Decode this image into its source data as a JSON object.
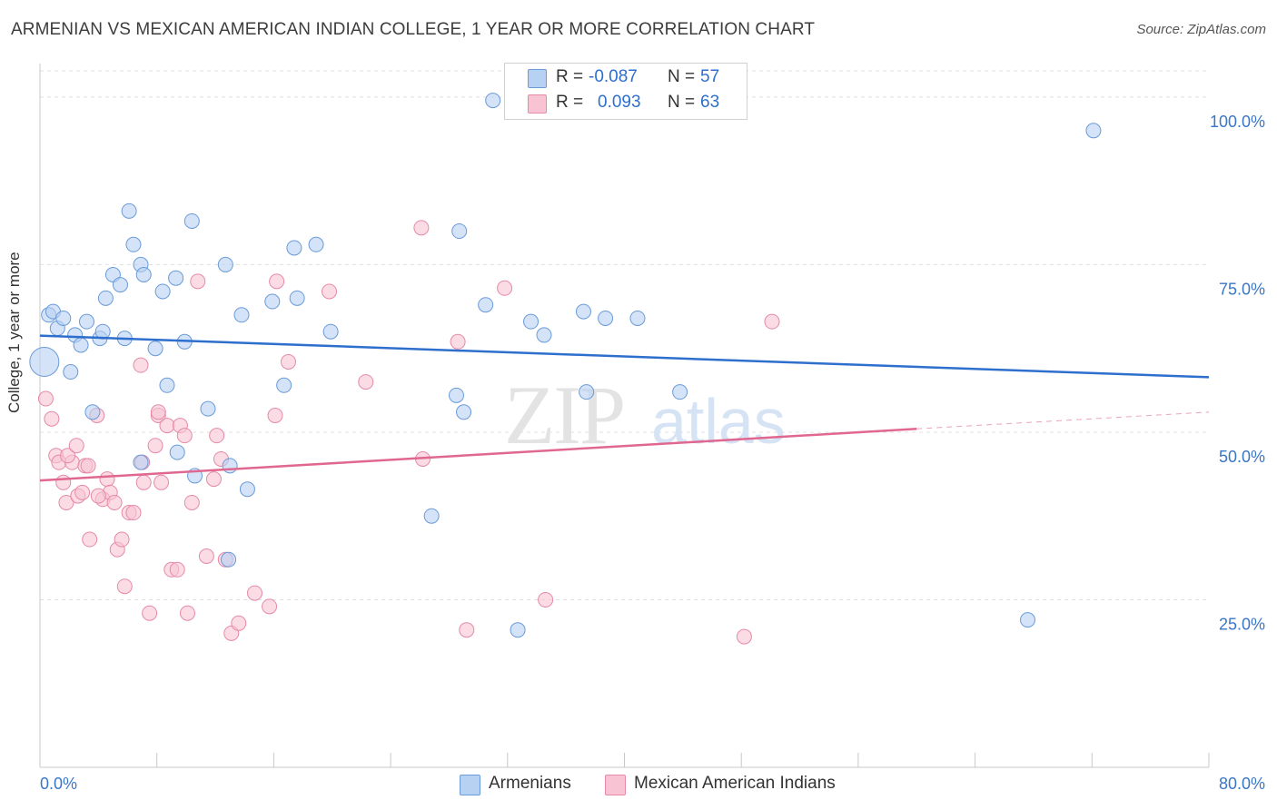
{
  "title": "ARMENIAN VS MEXICAN AMERICAN INDIAN COLLEGE, 1 YEAR OR MORE CORRELATION CHART",
  "source": "Source: ZipAtlas.com",
  "watermark": {
    "zip": "ZIP",
    "atlas": "atlas"
  },
  "stats": {
    "r_label": "R =",
    "n_label": "N =",
    "rows": [
      {
        "r": "-0.087",
        "n": "57"
      },
      {
        "r": "0.093",
        "n": "63"
      }
    ]
  },
  "legend": [
    "Armenians",
    "Mexican American Indians"
  ],
  "colors": {
    "armenians_fill": "#b7d1f3",
    "armenians_stroke": "#6a9bd8",
    "armenians_line": "#2e6fce",
    "mexican_fill": "#f8c4d4",
    "mexican_stroke": "#e58aa8",
    "mexican_line": "#e06890",
    "axis_text": "#3a76c8",
    "grid": "#e0e0e0"
  },
  "chart_data": {
    "type": "scatter",
    "title": "ARMENIAN VS MEXICAN AMERICAN INDIAN COLLEGE, 1 YEAR OR MORE CORRELATION CHART",
    "xlabel": "",
    "ylabel": "College, 1 year or more",
    "xlim": [
      0,
      80
    ],
    "ylim": [
      0,
      105
    ],
    "x_tick_labels": [
      "0.0%",
      "80.0%"
    ],
    "y_ticks": [
      25,
      50,
      75,
      100
    ],
    "y_tick_labels": [
      "25.0%",
      "50.0%",
      "75.0%",
      "100.0%"
    ],
    "grid": true,
    "legend_position": "bottom",
    "series": [
      {
        "name": "Armenians",
        "r": -0.087,
        "n": 57,
        "trend": {
          "x": [
            0,
            80
          ],
          "y": [
            64.4,
            58.2
          ]
        },
        "points": [
          [
            0.3,
            60.5
          ],
          [
            0.6,
            67.5
          ],
          [
            0.9,
            68.0
          ],
          [
            1.2,
            65.5
          ],
          [
            1.6,
            67.0
          ],
          [
            2.1,
            59.0
          ],
          [
            2.4,
            64.5
          ],
          [
            2.8,
            63.0
          ],
          [
            3.2,
            66.5
          ],
          [
            3.6,
            53.0
          ],
          [
            4.1,
            64.0
          ],
          [
            4.3,
            65.0
          ],
          [
            4.5,
            70.0
          ],
          [
            5.0,
            73.5
          ],
          [
            5.5,
            72.0
          ],
          [
            5.8,
            64.0
          ],
          [
            6.1,
            83.0
          ],
          [
            6.4,
            78.0
          ],
          [
            6.9,
            75.0
          ],
          [
            7.1,
            73.5
          ],
          [
            7.9,
            62.5
          ],
          [
            8.4,
            71.0
          ],
          [
            8.7,
            57.0
          ],
          [
            9.3,
            73.0
          ],
          [
            9.4,
            47.0
          ],
          [
            9.9,
            63.5
          ],
          [
            10.4,
            81.5
          ],
          [
            10.6,
            43.5
          ],
          [
            11.5,
            53.5
          ],
          [
            12.7,
            75.0
          ],
          [
            13.0,
            45.0
          ],
          [
            13.8,
            67.5
          ],
          [
            14.2,
            41.5
          ],
          [
            15.9,
            69.5
          ],
          [
            16.7,
            57.0
          ],
          [
            17.4,
            77.5
          ],
          [
            17.6,
            70.0
          ],
          [
            18.9,
            78.0
          ],
          [
            19.9,
            65.0
          ],
          [
            26.8,
            37.5
          ],
          [
            28.5,
            55.5
          ],
          [
            28.7,
            80.0
          ],
          [
            29.0,
            53.0
          ],
          [
            30.5,
            69.0
          ],
          [
            31.0,
            99.5
          ],
          [
            32.7,
            20.5
          ],
          [
            33.6,
            66.5
          ],
          [
            34.5,
            64.5
          ],
          [
            37.2,
            68.0
          ],
          [
            37.4,
            56.0
          ],
          [
            38.7,
            67.0
          ],
          [
            40.9,
            67.0
          ],
          [
            43.8,
            56.0
          ],
          [
            67.6,
            22.0
          ],
          [
            72.1,
            95.0
          ],
          [
            12.9,
            31.0
          ],
          [
            6.9,
            45.5
          ]
        ]
      },
      {
        "name": "Mexican American Indians",
        "r": 0.093,
        "n": 63,
        "trend": {
          "x": [
            0,
            60,
            80
          ],
          "y": [
            42.8,
            50.5,
            53.0
          ]
        },
        "points": [
          [
            0.4,
            55.0
          ],
          [
            0.8,
            52.0
          ],
          [
            1.1,
            46.5
          ],
          [
            1.3,
            45.5
          ],
          [
            1.6,
            42.5
          ],
          [
            1.8,
            39.5
          ],
          [
            2.2,
            45.5
          ],
          [
            2.6,
            40.5
          ],
          [
            2.9,
            41.0
          ],
          [
            3.1,
            45.0
          ],
          [
            3.4,
            34.0
          ],
          [
            3.9,
            52.5
          ],
          [
            4.3,
            40.0
          ],
          [
            4.6,
            43.0
          ],
          [
            4.8,
            41.0
          ],
          [
            5.1,
            39.5
          ],
          [
            5.3,
            32.5
          ],
          [
            5.6,
            34.0
          ],
          [
            5.8,
            27.0
          ],
          [
            6.1,
            38.0
          ],
          [
            6.4,
            38.0
          ],
          [
            6.9,
            60.0
          ],
          [
            7.1,
            42.5
          ],
          [
            7.5,
            23.0
          ],
          [
            7.9,
            48.0
          ],
          [
            8.1,
            52.5
          ],
          [
            8.3,
            42.5
          ],
          [
            8.7,
            51.0
          ],
          [
            9.0,
            29.5
          ],
          [
            9.4,
            29.5
          ],
          [
            9.6,
            51.0
          ],
          [
            9.9,
            49.5
          ],
          [
            10.1,
            23.0
          ],
          [
            10.4,
            39.5
          ],
          [
            10.8,
            72.5
          ],
          [
            11.4,
            31.5
          ],
          [
            11.9,
            43.0
          ],
          [
            12.1,
            49.5
          ],
          [
            12.4,
            46.0
          ],
          [
            12.7,
            31.0
          ],
          [
            13.1,
            20.0
          ],
          [
            13.6,
            21.5
          ],
          [
            14.7,
            26.0
          ],
          [
            15.7,
            24.0
          ],
          [
            16.1,
            52.5
          ],
          [
            16.2,
            72.5
          ],
          [
            17.0,
            60.5
          ],
          [
            19.8,
            71.0
          ],
          [
            22.3,
            57.5
          ],
          [
            26.1,
            80.5
          ],
          [
            26.2,
            46.0
          ],
          [
            28.6,
            63.5
          ],
          [
            29.2,
            20.5
          ],
          [
            31.8,
            71.5
          ],
          [
            34.6,
            25.0
          ],
          [
            48.2,
            19.5
          ],
          [
            50.1,
            66.5
          ],
          [
            1.9,
            46.5
          ],
          [
            4.0,
            40.5
          ],
          [
            7.0,
            45.5
          ],
          [
            3.3,
            45.0
          ],
          [
            8.1,
            53.0
          ],
          [
            2.5,
            48.0
          ]
        ]
      }
    ]
  }
}
